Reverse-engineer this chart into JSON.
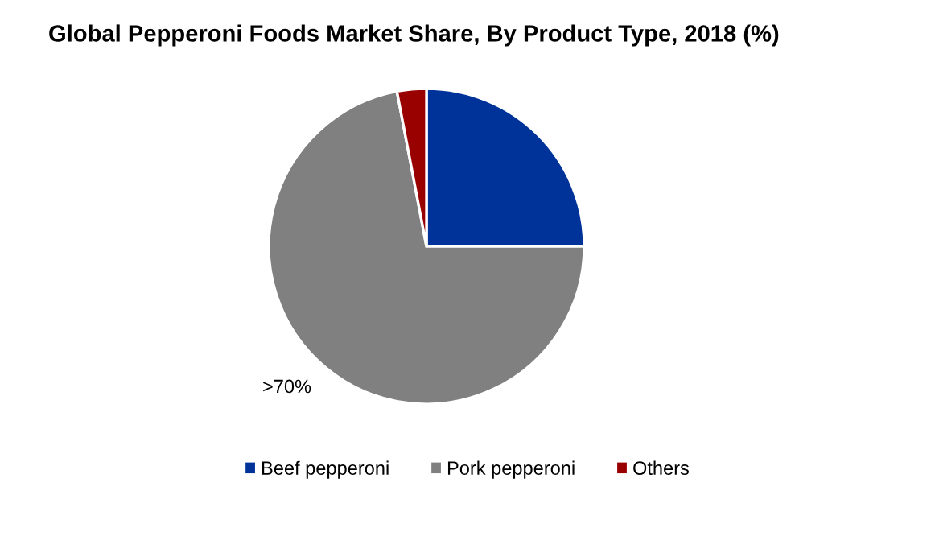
{
  "chart_data": {
    "type": "pie",
    "title": "Global Pepperoni Foods Market Share, By Product Type, 2018 (%)",
    "categories": [
      "Beef pepperoni",
      "Pork pepperoni",
      "Others"
    ],
    "values": [
      25,
      72,
      3
    ],
    "colors": [
      "#003399",
      "#808080",
      "#990000"
    ],
    "annotations": [
      ">70%"
    ],
    "legend": "bottom"
  }
}
